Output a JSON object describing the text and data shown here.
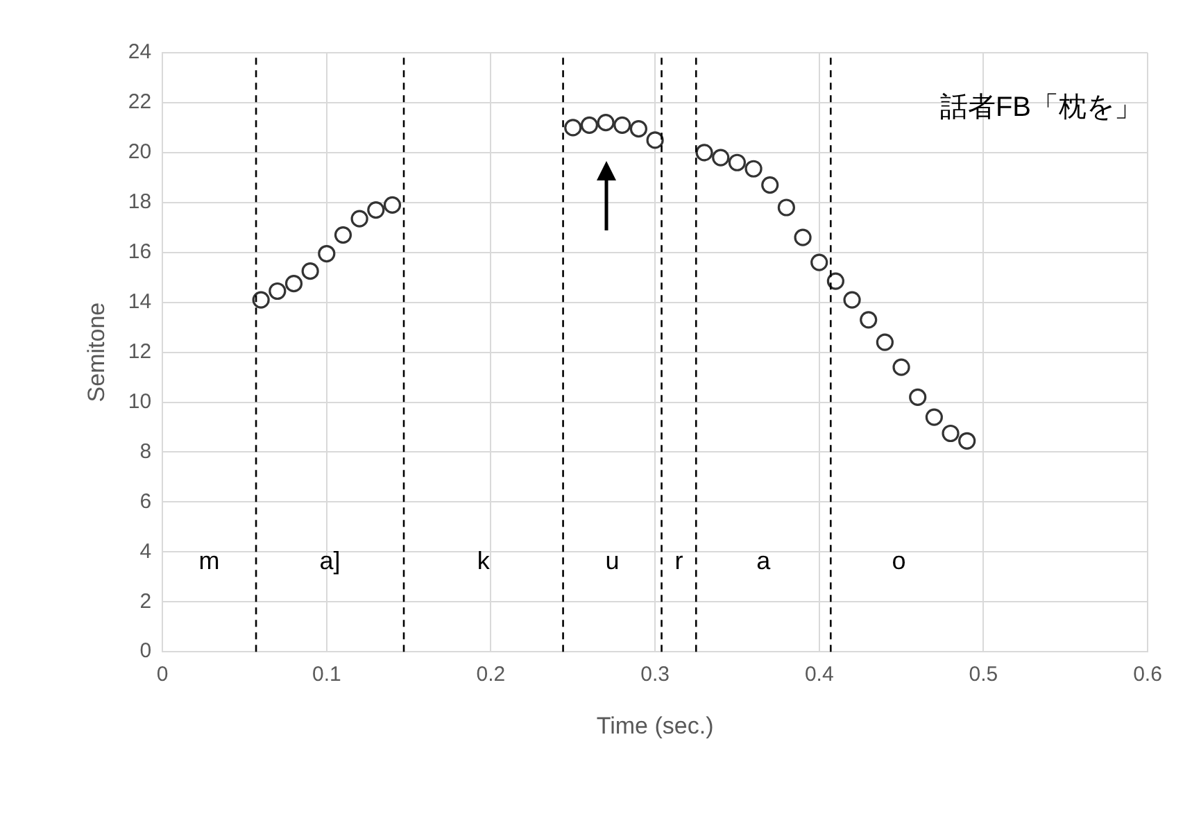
{
  "chart_data": {
    "type": "scatter",
    "xlabel": "Time (sec.)",
    "ylabel": "Semitone",
    "series": [
      {
        "color": "#333333",
        "x": [
          0.06,
          0.07,
          0.08,
          0.09,
          0.1,
          0.11,
          0.12,
          0.13,
          0.14
        ],
        "values": [
          14.1,
          14.45,
          14.75,
          15.25,
          15.95,
          16.7,
          17.35,
          17.7,
          17.9
        ]
      },
      {
        "color": "#333333",
        "x": [
          0.25,
          0.26,
          0.27,
          0.28,
          0.29,
          0.3
        ],
        "values": [
          21.0,
          21.1,
          21.2,
          21.1,
          20.95,
          20.5
        ]
      },
      {
        "color": "#333333",
        "x": [
          0.33,
          0.34,
          0.35,
          0.36,
          0.37,
          0.38,
          0.39,
          0.4,
          0.41,
          0.42,
          0.43,
          0.44,
          0.45,
          0.46,
          0.47,
          0.48,
          0.49
        ],
        "values": [
          20.0,
          19.8,
          19.6,
          19.35,
          18.7,
          17.8,
          16.6,
          15.6,
          14.85,
          14.1,
          13.3,
          12.4,
          11.4,
          10.2,
          9.4,
          8.75,
          8.45
        ]
      }
    ],
    "xlim": [
      0,
      0.6
    ],
    "xticks": [
      0,
      0.1,
      0.2,
      0.3,
      0.4,
      0.5,
      0.6
    ],
    "ylim": [
      0,
      24
    ],
    "yticks": [
      0,
      2,
      4,
      6,
      8,
      10,
      12,
      14,
      16,
      18,
      20,
      22,
      24
    ],
    "ref_lines": [
      {
        "axis": "x",
        "value": 0.057,
        "line_style": "dashed",
        "color": "#000000"
      },
      {
        "axis": "x",
        "value": 0.147,
        "line_style": "dashed",
        "color": "#000000"
      },
      {
        "axis": "x",
        "value": 0.244,
        "line_style": "dashed",
        "color": "#000000"
      },
      {
        "axis": "x",
        "value": 0.304,
        "line_style": "dashed",
        "color": "#000000"
      },
      {
        "axis": "x",
        "value": 0.325,
        "line_style": "dashed",
        "color": "#000000"
      },
      {
        "axis": "x",
        "value": 0.407,
        "line_style": "dashed",
        "color": "#000000"
      }
    ],
    "annotations": [
      "m",
      "a]",
      "k",
      "u",
      "r",
      "a",
      "o",
      "話者FB「枕を」"
    ],
    "grid": true,
    "legend": false,
    "marker": "circle"
  }
}
